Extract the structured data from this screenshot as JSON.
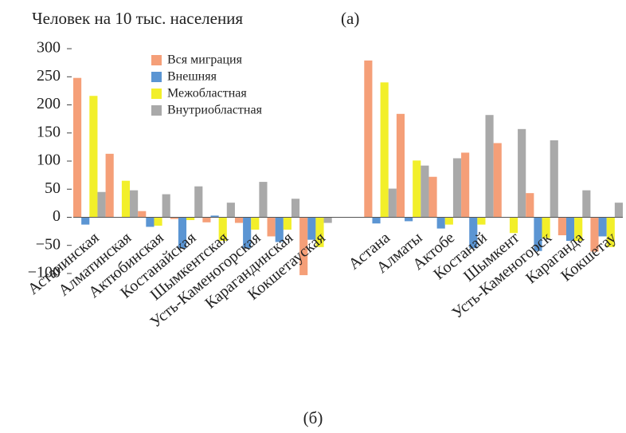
{
  "chart_data": {
    "type": "bar",
    "title": "Человек на 10 тыс. населения",
    "annotations": [
      "(а)",
      "(б)"
    ],
    "categories": [
      "Астанинская",
      "Алматинская",
      "Актюбинская",
      "Костанайская",
      "Шымкентская",
      "Усть-Каменогорская",
      "Карагандинская",
      "Кокшетауская",
      null,
      "Астана",
      "Алматы",
      "Актобе",
      "Костанай",
      "Шымкент",
      "Усть-Каменогорск",
      "Караганда",
      "Кокшетау"
    ],
    "series": [
      {
        "name": "Вся миграция",
        "color": "#f59f78",
        "values": [
          248,
          113,
          11,
          -3,
          -9,
          -10,
          -34,
          -103,
          null,
          279,
          184,
          72,
          115,
          132,
          43,
          -32,
          -61
        ]
      },
      {
        "name": "Внешняя",
        "color": "#5b95d3",
        "values": [
          -13,
          0,
          -17,
          -55,
          3,
          -55,
          -44,
          -40,
          null,
          -11,
          -7,
          -20,
          -55,
          0,
          -60,
          -42,
          -34
        ]
      },
      {
        "name": "Межобластная",
        "color": "#f2ef2a",
        "values": [
          216,
          65,
          -15,
          -5,
          -42,
          -22,
          -22,
          -53,
          null,
          240,
          101,
          -13,
          -13,
          -28,
          -37,
          -42,
          -53
        ]
      },
      {
        "name": "Внутриобластная",
        "color": "#a9a9a9",
        "values": [
          45,
          48,
          41,
          55,
          26,
          63,
          33,
          -10,
          null,
          51,
          92,
          105,
          182,
          157,
          137,
          48,
          26
        ]
      }
    ],
    "ylim": [
      -110,
      310
    ],
    "yticks": [
      {
        "value": -100,
        "label": "−100"
      },
      {
        "value": -50,
        "label": "−50"
      },
      0,
      50,
      100,
      150,
      200,
      250,
      300
    ],
    "legend": "top-left"
  }
}
